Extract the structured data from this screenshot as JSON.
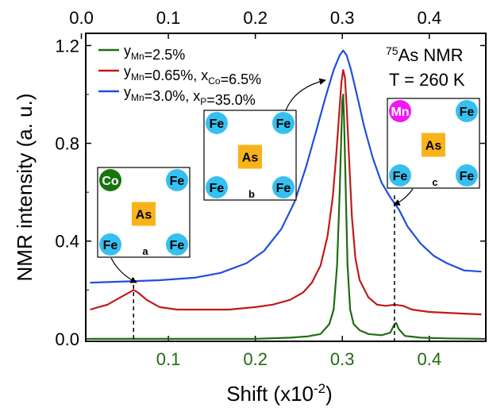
{
  "chart_data": {
    "type": "line",
    "xlabel": "Shift (x10",
    "xlabel_sup": "-2",
    "xlabel_tail": ")",
    "ylabel": "NMR intensity (a. u.)",
    "xlim": [
      0.005,
      0.465
    ],
    "ylim": [
      -0.01,
      1.25
    ],
    "x_ticks_bottom": [
      "0.1",
      "0.2",
      "0.3",
      "0.4"
    ],
    "x_ticks_top": [
      "0.0",
      "0.1",
      "0.2",
      "0.3",
      "0.4"
    ],
    "y_ticks": [
      "0.0",
      "0.4",
      "0.8",
      "1.2"
    ],
    "annotation": {
      "line1_sup": "75",
      "line1_text": "As NMR",
      "line2": "T = 260 K"
    },
    "legend_position": "top-left",
    "series": [
      {
        "name": "yMn=2.5%",
        "label_parts": [
          {
            "t": "y"
          },
          {
            "t": "Mn",
            "sub": true
          },
          {
            "t": "=2.5%"
          }
        ],
        "color": "#1f6b12",
        "points": [
          [
            0.01,
            0.0
          ],
          [
            0.05,
            0.0
          ],
          [
            0.1,
            0.0
          ],
          [
            0.15,
            0.0
          ],
          [
            0.2,
            0.0
          ],
          [
            0.24,
            0.005
          ],
          [
            0.26,
            0.01
          ],
          [
            0.275,
            0.02
          ],
          [
            0.285,
            0.06
          ],
          [
            0.29,
            0.12
          ],
          [
            0.294,
            0.3
          ],
          [
            0.297,
            0.6
          ],
          [
            0.299,
            0.85
          ],
          [
            0.3,
            0.97
          ],
          [
            0.301,
            1.0
          ],
          [
            0.302,
            0.9
          ],
          [
            0.304,
            0.6
          ],
          [
            0.306,
            0.3
          ],
          [
            0.309,
            0.12
          ],
          [
            0.313,
            0.06
          ],
          [
            0.32,
            0.035
          ],
          [
            0.33,
            0.02
          ],
          [
            0.345,
            0.015
          ],
          [
            0.355,
            0.025
          ],
          [
            0.36,
            0.06
          ],
          [
            0.362,
            0.065
          ],
          [
            0.365,
            0.04
          ],
          [
            0.372,
            0.012
          ],
          [
            0.39,
            0.005
          ],
          [
            0.42,
            0.002
          ],
          [
            0.46,
            0.0
          ]
        ]
      },
      {
        "name": "yMn=0.65%, xCo=6.5%",
        "label_parts": [
          {
            "t": "y"
          },
          {
            "t": "Mn",
            "sub": true
          },
          {
            "t": "=0.65%, x"
          },
          {
            "t": "Co",
            "sub": true
          },
          {
            "t": "=6.5%"
          }
        ],
        "color": "#c01a1a",
        "points": [
          [
            0.01,
            0.12
          ],
          [
            0.03,
            0.14
          ],
          [
            0.045,
            0.17
          ],
          [
            0.055,
            0.19
          ],
          [
            0.06,
            0.2
          ],
          [
            0.065,
            0.19
          ],
          [
            0.075,
            0.16
          ],
          [
            0.09,
            0.13
          ],
          [
            0.11,
            0.12
          ],
          [
            0.14,
            0.12
          ],
          [
            0.17,
            0.12
          ],
          [
            0.2,
            0.13
          ],
          [
            0.22,
            0.14
          ],
          [
            0.24,
            0.16
          ],
          [
            0.255,
            0.19
          ],
          [
            0.265,
            0.23
          ],
          [
            0.275,
            0.3
          ],
          [
            0.283,
            0.42
          ],
          [
            0.289,
            0.58
          ],
          [
            0.293,
            0.75
          ],
          [
            0.297,
            0.95
          ],
          [
            0.299,
            1.05
          ],
          [
            0.301,
            1.1
          ],
          [
            0.303,
            1.07
          ],
          [
            0.305,
            0.95
          ],
          [
            0.308,
            0.72
          ],
          [
            0.311,
            0.5
          ],
          [
            0.315,
            0.33
          ],
          [
            0.32,
            0.24
          ],
          [
            0.33,
            0.17
          ],
          [
            0.34,
            0.14
          ],
          [
            0.35,
            0.135
          ],
          [
            0.36,
            0.14
          ],
          [
            0.37,
            0.135
          ],
          [
            0.38,
            0.12
          ],
          [
            0.4,
            0.11
          ],
          [
            0.43,
            0.105
          ],
          [
            0.46,
            0.1
          ]
        ]
      },
      {
        "name": "yMn=3.0%, xP=35.0%",
        "label_parts": [
          {
            "t": "y"
          },
          {
            "t": "Mn",
            "sub": true
          },
          {
            "t": "=3.0%, x"
          },
          {
            "t": "P",
            "sub": true
          },
          {
            "t": "=35.0%"
          }
        ],
        "color": "#1f4fe0",
        "points": [
          [
            0.01,
            0.23
          ],
          [
            0.05,
            0.235
          ],
          [
            0.09,
            0.24
          ],
          [
            0.13,
            0.25
          ],
          [
            0.16,
            0.27
          ],
          [
            0.19,
            0.31
          ],
          [
            0.21,
            0.36
          ],
          [
            0.23,
            0.45
          ],
          [
            0.245,
            0.56
          ],
          [
            0.258,
            0.7
          ],
          [
            0.27,
            0.85
          ],
          [
            0.28,
            0.98
          ],
          [
            0.29,
            1.1
          ],
          [
            0.297,
            1.16
          ],
          [
            0.301,
            1.18
          ],
          [
            0.305,
            1.16
          ],
          [
            0.31,
            1.1
          ],
          [
            0.318,
            0.98
          ],
          [
            0.325,
            0.87
          ],
          [
            0.335,
            0.74
          ],
          [
            0.345,
            0.64
          ],
          [
            0.355,
            0.58
          ],
          [
            0.365,
            0.53
          ],
          [
            0.375,
            0.46
          ],
          [
            0.39,
            0.39
          ],
          [
            0.405,
            0.34
          ],
          [
            0.42,
            0.31
          ],
          [
            0.44,
            0.28
          ],
          [
            0.46,
            0.275
          ]
        ]
      }
    ],
    "vlines": [
      0.06,
      0.36
    ],
    "insets": [
      {
        "corner_site": "Co",
        "center": "As",
        "others": [
          "Fe",
          "Fe",
          "Fe"
        ],
        "tag": "a",
        "corner_color": "#17750f"
      },
      {
        "corner_site": "Fe",
        "center": "As",
        "others": [
          "Fe",
          "Fe",
          "Fe"
        ],
        "tag": "b",
        "corner_color": "#36c0ef"
      },
      {
        "corner_site": "Mn",
        "center": "As",
        "others": [
          "Fe",
          "Fe",
          "Fe"
        ],
        "tag": "c",
        "corner_color": "#f019f0"
      }
    ],
    "colors": {
      "site_fe": "#36c0ef",
      "site_as": "#f9b31a",
      "bottom_axis": "#1f6b12"
    }
  }
}
